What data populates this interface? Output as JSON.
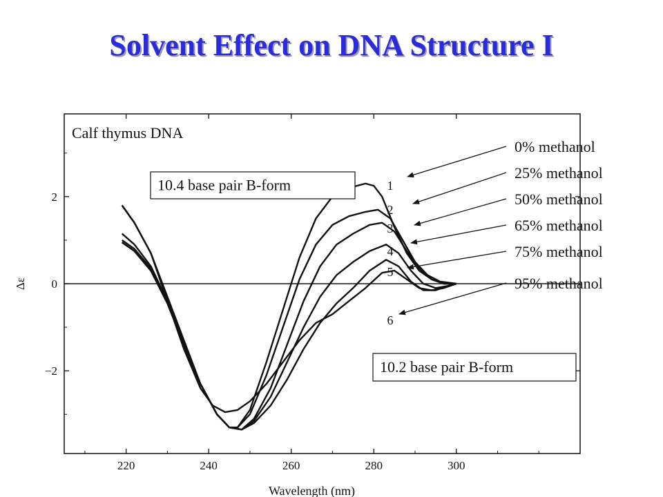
{
  "slide": {
    "title": "Solvent Effect on DNA Structure I"
  },
  "colors": {
    "title": "#2b2bd9",
    "ink": "#111111"
  },
  "chart_data": {
    "type": "line",
    "title": "Calf thymus DNA",
    "xlabel": "Wavelength (nm)",
    "ylabel": "Δε",
    "xlim": [
      205,
      330
    ],
    "ylim": [
      -3.9,
      3.9
    ],
    "xticks": [
      220,
      240,
      260,
      280,
      300
    ],
    "yticks": [
      -2,
      0,
      2
    ],
    "ytick_labels": [
      "−2",
      "0",
      "2"
    ],
    "series": [
      {
        "name": "0% methanol",
        "curve_label": "1",
        "x": [
          219,
          222,
          226,
          230,
          234,
          238,
          242,
          245,
          247,
          250,
          254,
          258,
          262,
          266,
          270,
          274,
          278,
          280,
          282,
          285,
          288,
          291,
          294,
          297,
          300
        ],
        "y": [
          1.8,
          1.4,
          0.7,
          -0.3,
          -1.3,
          -2.3,
          -3.0,
          -3.3,
          -3.3,
          -2.9,
          -1.8,
          -0.6,
          0.6,
          1.5,
          2.0,
          2.2,
          2.3,
          2.25,
          2.0,
          1.3,
          0.7,
          0.3,
          0.1,
          0.0,
          0.0
        ]
      },
      {
        "name": "25% methanol",
        "curve_label": "2",
        "x": [
          219,
          222,
          226,
          230,
          234,
          238,
          242,
          245,
          247,
          250,
          254,
          258,
          262,
          266,
          270,
          274,
          278,
          281,
          284,
          287,
          290,
          293,
          296,
          300
        ],
        "y": [
          1.15,
          0.9,
          0.4,
          -0.4,
          -1.4,
          -2.3,
          -3.0,
          -3.3,
          -3.3,
          -3.0,
          -2.1,
          -1.0,
          0.1,
          0.9,
          1.35,
          1.55,
          1.65,
          1.7,
          1.5,
          1.0,
          0.5,
          0.2,
          0.05,
          0.0
        ]
      },
      {
        "name": "50% methanol",
        "curve_label": "3",
        "x": [
          219,
          222,
          226,
          230,
          234,
          238,
          242,
          245,
          248,
          251,
          255,
          259,
          263,
          267,
          271,
          275,
          279,
          282,
          285,
          288,
          291,
          294,
          297,
          300
        ],
        "y": [
          1.0,
          0.8,
          0.35,
          -0.4,
          -1.4,
          -2.3,
          -3.0,
          -3.3,
          -3.35,
          -3.1,
          -2.4,
          -1.4,
          -0.4,
          0.4,
          0.9,
          1.15,
          1.35,
          1.4,
          1.2,
          0.75,
          0.35,
          0.1,
          0.0,
          0.0
        ]
      },
      {
        "name": "65% methanol",
        "curve_label": "4",
        "x": [
          219,
          222,
          226,
          230,
          234,
          238,
          242,
          245,
          248,
          251,
          255,
          259,
          263,
          267,
          271,
          275,
          279,
          283,
          286,
          289,
          292,
          295,
          298,
          300
        ],
        "y": [
          0.95,
          0.75,
          0.3,
          -0.45,
          -1.4,
          -2.3,
          -3.0,
          -3.3,
          -3.35,
          -3.15,
          -2.6,
          -1.8,
          -1.0,
          -0.3,
          0.2,
          0.5,
          0.75,
          0.9,
          0.7,
          0.3,
          0.0,
          -0.1,
          -0.05,
          0.0
        ]
      },
      {
        "name": "75% methanol",
        "curve_label": "5",
        "x": [
          219,
          222,
          226,
          230,
          234,
          238,
          242,
          245,
          248,
          251,
          255,
          259,
          263,
          267,
          271,
          275,
          279,
          283,
          286,
          289,
          292,
          295,
          298,
          300
        ],
        "y": [
          0.95,
          0.75,
          0.3,
          -0.45,
          -1.4,
          -2.3,
          -3.0,
          -3.3,
          -3.35,
          -3.2,
          -2.8,
          -2.2,
          -1.5,
          -0.9,
          -0.45,
          -0.1,
          0.3,
          0.55,
          0.4,
          0.05,
          -0.15,
          -0.15,
          -0.05,
          0.0
        ]
      },
      {
        "name": "95% methanol",
        "curve_label": "6",
        "x": [
          219,
          222,
          226,
          230,
          234,
          238,
          241,
          244,
          247,
          250,
          254,
          258,
          262,
          266,
          270,
          274,
          278,
          282,
          285,
          288,
          291,
          294,
          297,
          300
        ],
        "y": [
          1.8,
          1.4,
          0.7,
          -0.4,
          -1.5,
          -2.4,
          -2.8,
          -2.95,
          -2.9,
          -2.7,
          -2.3,
          -1.8,
          -1.3,
          -0.9,
          -0.7,
          -0.4,
          -0.1,
          0.25,
          0.3,
          0.1,
          -0.1,
          -0.15,
          -0.1,
          0.0
        ]
      }
    ],
    "annotations": {
      "box_top": "10.4 base pair B-form",
      "box_bottom": "10.2 base pair B-form"
    }
  }
}
